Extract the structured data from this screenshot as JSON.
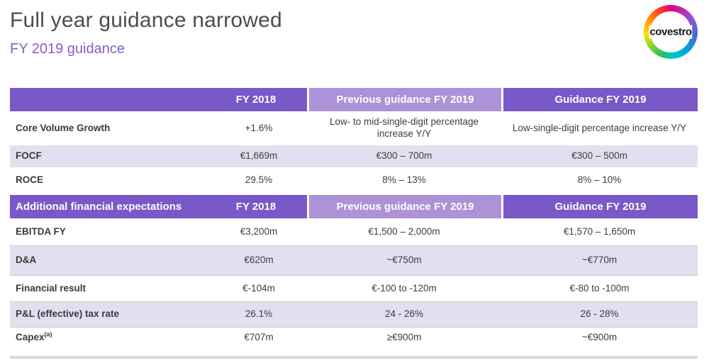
{
  "page": {
    "title": "Full year guidance narrowed",
    "subtitle": "FY 2019 guidance",
    "logo_text": "covestro"
  },
  "colors": {
    "header_dark_purple": "#7958c8",
    "header_light_purple": "#ac92d7",
    "row_lavender": "#e4dff0",
    "subtitle_purple": "#8a5dc8",
    "title_gray": "#4d4d4d"
  },
  "table": {
    "section1_header": {
      "label": "",
      "fy2018": "FY 2018",
      "prev": "Previous guidance FY 2019",
      "guidance": "Guidance FY 2019"
    },
    "rows_section1": [
      {
        "label": "Core Volume Growth",
        "fy2018": "+1.6%",
        "prev": "Low- to mid-single-digit percentage increase Y/Y",
        "guidance": "Low-single-digit percentage increase Y/Y"
      },
      {
        "label": "FOCF",
        "fy2018": "€1,669m",
        "prev": "€300 – 700m",
        "guidance": "€300 – 500m"
      },
      {
        "label": "ROCE",
        "fy2018": "29.5%",
        "prev": "8% – 13%",
        "guidance": "8% – 10%"
      }
    ],
    "section2_header": {
      "label": "Additional financial expectations",
      "fy2018": "FY 2018",
      "prev": "Previous guidance FY 2019",
      "guidance": "Guidance FY 2019"
    },
    "rows_section2": [
      {
        "label": "EBITDA FY",
        "label_sup": "",
        "fy2018": "€3,200m",
        "prev": "€1,500 – 2,000m",
        "guidance": "€1,570 – 1,650m"
      },
      {
        "label": "D&A",
        "label_sup": "",
        "fy2018": "€620m",
        "prev": "~€750m",
        "guidance": "~€770m"
      },
      {
        "label": "Financial result",
        "label_sup": "",
        "fy2018": "€-104m",
        "prev": "€-100 to -120m",
        "guidance": "€-80 to -100m"
      },
      {
        "label": "P&L (effective) tax rate",
        "label_sup": "",
        "fy2018": "26.1%",
        "prev": "24 - 26%",
        "guidance": "26 - 28%"
      },
      {
        "label": "Capex",
        "label_sup": "(a)",
        "fy2018": "€707m",
        "prev": "≥€900m",
        "guidance": "~€900m"
      }
    ]
  }
}
